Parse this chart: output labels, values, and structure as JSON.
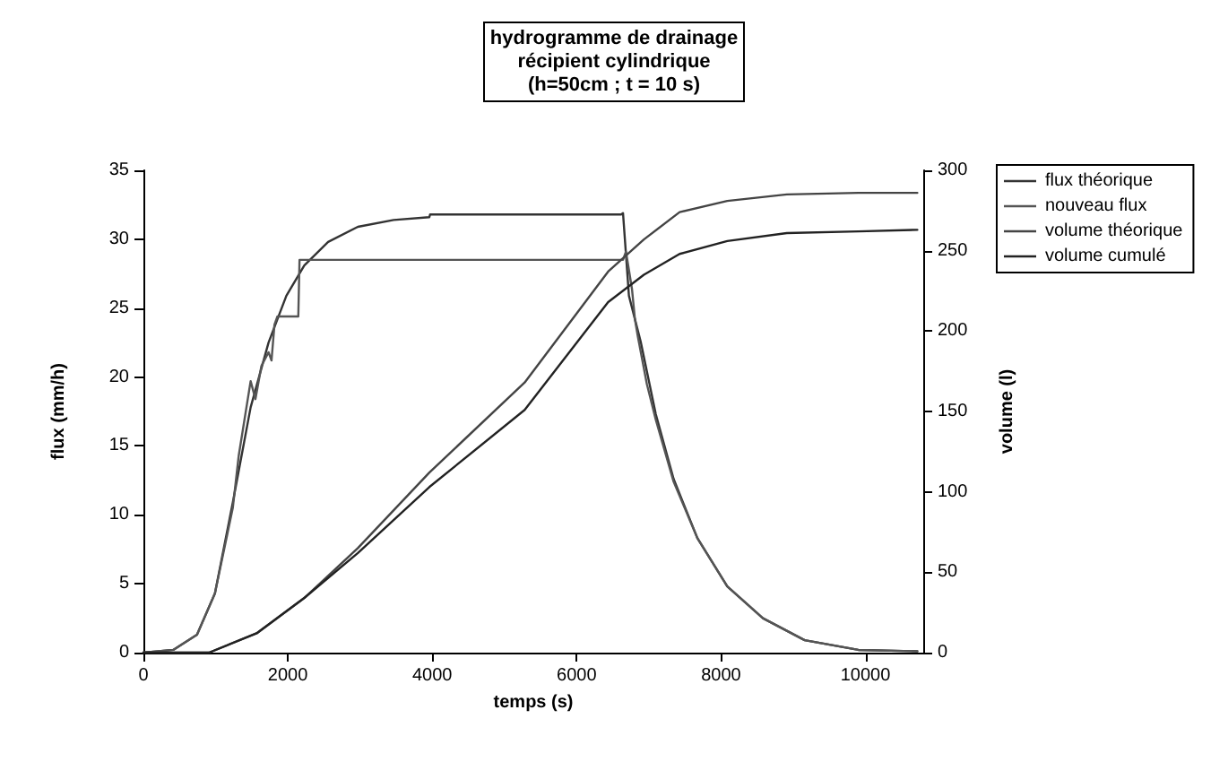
{
  "chart_data": {
    "type": "line",
    "title": "hydrogramme de drainage\nrécipient cylindrique\n(h=50cm ; t = 10 s)",
    "xlabel": "temps (s)",
    "ylabel": "flux (mm/h)",
    "y2label": "volume (l)",
    "xlim": [
      0,
      10800
    ],
    "xticks": [
      0,
      2000,
      4000,
      6000,
      8000,
      10000
    ],
    "ylim": [
      0,
      35
    ],
    "yticks": [
      0,
      5,
      10,
      15,
      20,
      25,
      30,
      35
    ],
    "y2lim": [
      0,
      300
    ],
    "y2ticks": [
      0,
      50,
      100,
      150,
      200,
      250,
      300
    ],
    "grid": false,
    "legend": "top right",
    "marker": "none",
    "line_style": "solid",
    "series": [
      {
        "name": "flux théorique",
        "color": "#333333",
        "x": [
          0,
          413,
          742,
          990,
          1238,
          1485,
          1733,
          1980,
          2228,
          2558,
          2970,
          3465,
          3960,
          3970,
          6616,
          6642,
          6724,
          6890,
          7096,
          7343,
          7673,
          8086,
          8580,
          9158,
          9901,
          10718
        ],
        "values": [
          0,
          0.2,
          1.3,
          4.3,
          10.9,
          17.8,
          22.5,
          25.9,
          28.1,
          29.8,
          30.9,
          31.4,
          31.6,
          31.8,
          31.8,
          31.9,
          25.9,
          22.5,
          17.3,
          12.6,
          8.3,
          4.8,
          2.5,
          0.9,
          0.2,
          0.1
        ]
      },
      {
        "name": "nouveau flux",
        "color": "#555555",
        "x": [
          0,
          413,
          742,
          990,
          1238,
          1320,
          1485,
          1551,
          1634,
          1733,
          1774,
          1815,
          1856,
          2145,
          2162,
          6642,
          6683,
          6766,
          6807,
          6849,
          6972,
          7096,
          7343,
          7673,
          8086,
          8580,
          9158,
          9901,
          10718
        ],
        "values": [
          0,
          0.2,
          1.3,
          4.3,
          10.5,
          14.3,
          19.7,
          18.4,
          20.8,
          21.8,
          21.2,
          23.8,
          24.4,
          24.4,
          28.5,
          28.5,
          29.1,
          26.4,
          24.2,
          22.9,
          19.5,
          16.9,
          12.4,
          8.3,
          4.8,
          2.5,
          0.9,
          0.2,
          0.1
        ]
      },
      {
        "name": "volume théorique",
        "color": "#444444",
        "axis": "y2",
        "x": [
          0,
          908,
          1568,
          2228,
          2970,
          3960,
          5280,
          6436,
          6931,
          7426,
          8086,
          8911,
          9900,
          10718
        ],
        "values": [
          0,
          0,
          12,
          34,
          65,
          112,
          168,
          237,
          257,
          274,
          281,
          285,
          286,
          286
        ]
      },
      {
        "name": "volume cumulé",
        "color": "#222222",
        "axis": "y2",
        "x": [
          0,
          908,
          1568,
          2228,
          2970,
          3960,
          5280,
          6436,
          6931,
          7426,
          8086,
          8911,
          9900,
          10718
        ],
        "values": [
          0,
          0,
          12,
          34,
          62,
          103,
          151,
          218,
          235,
          248,
          256,
          261,
          262,
          263
        ]
      }
    ]
  }
}
